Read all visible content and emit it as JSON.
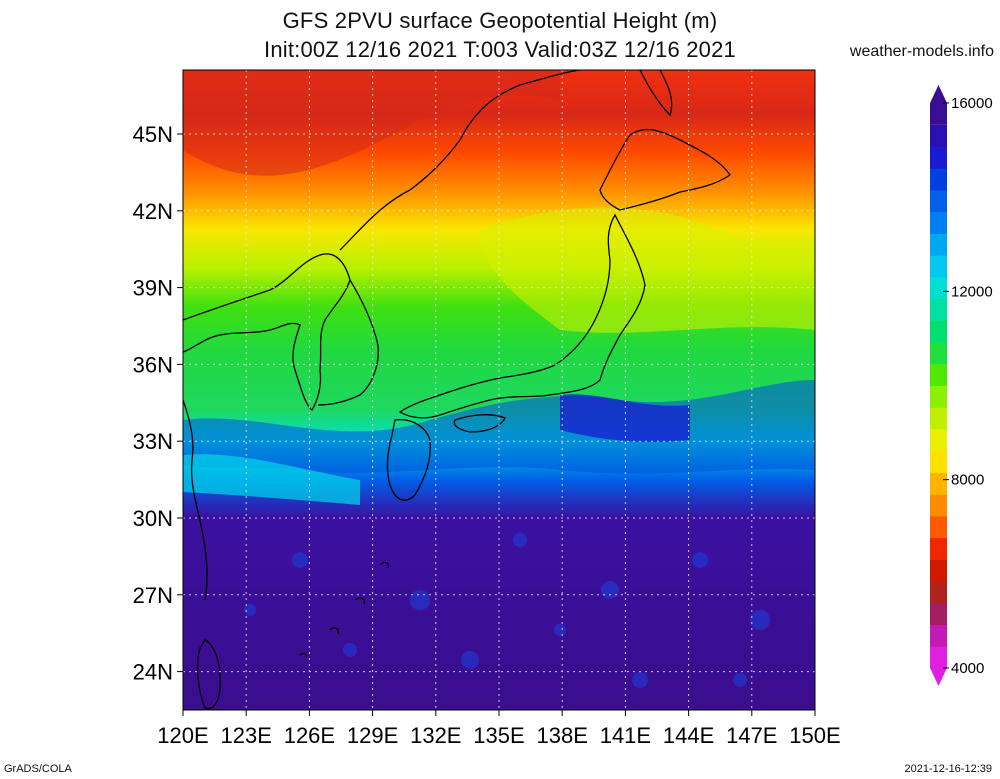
{
  "header": {
    "title_line1": "GFS 2PVU surface Geopotential Height (m)",
    "title_line2": "Init:00Z 12/16 2021 T:003 Valid:03Z 12/16 2021",
    "credit": "weather-models.info"
  },
  "footer": {
    "left": "GrADS/COLA",
    "right": "2021-12-16-12:39"
  },
  "map": {
    "variable": "2PVU surface geopotential height",
    "units": "m",
    "lon_range": [
      120,
      150
    ],
    "lat_range": [
      22.5,
      47.5
    ],
    "lat_labels": [
      {
        "value": 45,
        "label": "45N"
      },
      {
        "value": 42,
        "label": "42N"
      },
      {
        "value": 39,
        "label": "39N"
      },
      {
        "value": 36,
        "label": "36N"
      },
      {
        "value": 33,
        "label": "33N"
      },
      {
        "value": 30,
        "label": "30N"
      },
      {
        "value": 27,
        "label": "27N"
      },
      {
        "value": 24,
        "label": "24N"
      }
    ],
    "lon_labels": [
      {
        "value": 120,
        "label": "120E"
      },
      {
        "value": 123,
        "label": "123E"
      },
      {
        "value": 126,
        "label": "126E"
      },
      {
        "value": 129,
        "label": "129E"
      },
      {
        "value": 132,
        "label": "132E"
      },
      {
        "value": 135,
        "label": "135E"
      },
      {
        "value": 138,
        "label": "138E"
      },
      {
        "value": 141,
        "label": "141E"
      },
      {
        "value": 144,
        "label": "144E"
      },
      {
        "value": 147,
        "label": "147E"
      },
      {
        "value": 150,
        "label": "150E"
      }
    ],
    "gridlines": "dotted"
  },
  "colorbar": {
    "min": 4000,
    "max": 16000,
    "labels": [
      {
        "value": 16000,
        "label": "16000"
      },
      {
        "value": 12000,
        "label": "12000"
      },
      {
        "value": 8000,
        "label": "8000"
      },
      {
        "value": 4000,
        "label": "4000"
      }
    ],
    "colors_bottom_to_top": [
      "#e020e0",
      "#c41ab4",
      "#a21e60",
      "#b0221c",
      "#d01a00",
      "#f02800",
      "#ff5a00",
      "#ff8c00",
      "#ffb400",
      "#ffe000",
      "#e8f000",
      "#c0f000",
      "#8cf000",
      "#50e800",
      "#20e040",
      "#00e070",
      "#00e0a0",
      "#00e0d0",
      "#00c8f0",
      "#00a8f0",
      "#0080f0",
      "#0060e8",
      "#0040e0",
      "#1a1ad0",
      "#2a10b0",
      "#3a0e90"
    ]
  }
}
